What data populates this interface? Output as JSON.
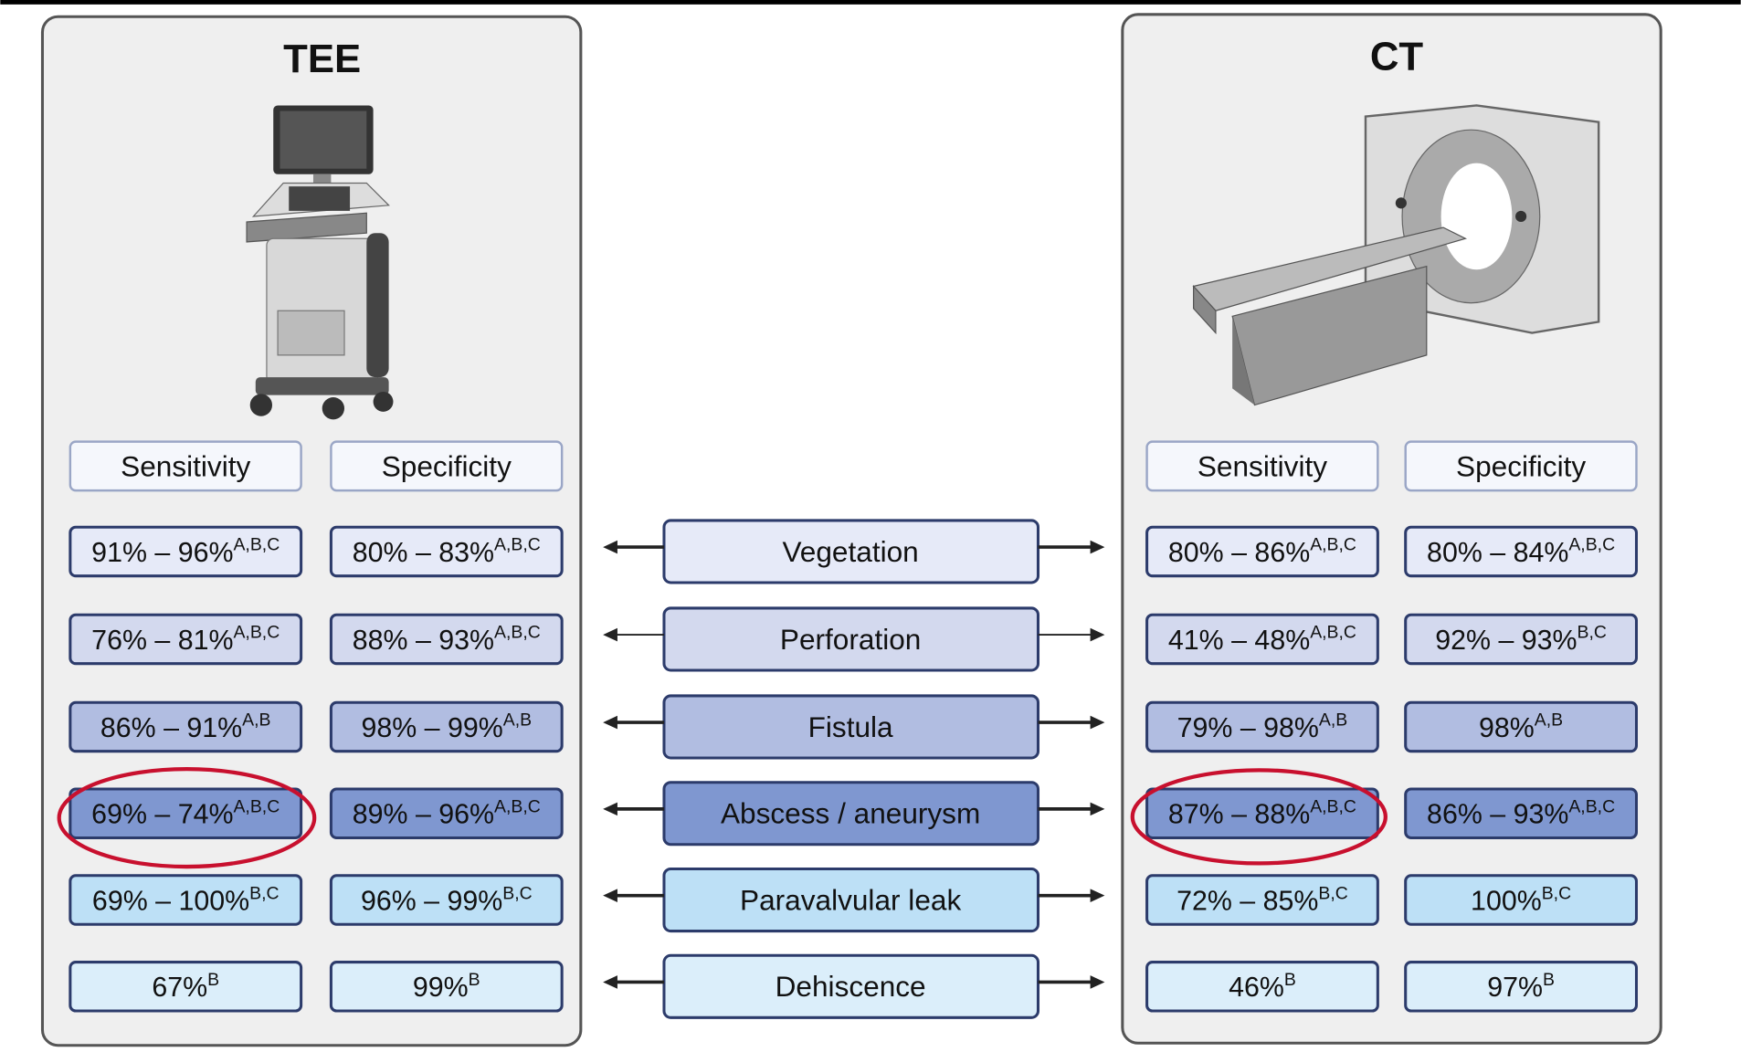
{
  "tee": {
    "title": "TEE",
    "headers": [
      "Sensitivity",
      "Specificity"
    ],
    "rows": [
      [
        {
          "value": "91% – 96%",
          "sup": "A,B,C"
        },
        {
          "value": "80% – 83%",
          "sup": "A,B,C"
        }
      ],
      [
        {
          "value": "76% – 81%",
          "sup": "A,B,C"
        },
        {
          "value": "88% – 93%",
          "sup": "A,B,C"
        }
      ],
      [
        {
          "value": "86% – 91%",
          "sup": "A,B"
        },
        {
          "value": "98% – 99%",
          "sup": "A,B"
        }
      ],
      [
        {
          "value": "69% – 74%",
          "sup": "A,B,C"
        },
        {
          "value": "89% – 96%",
          "sup": "A,B,C"
        }
      ],
      [
        {
          "value": "69% – 100%",
          "sup": "B,C"
        },
        {
          "value": "96% – 99%",
          "sup": "B,C"
        }
      ],
      [
        {
          "value": "67%",
          "sup": "B"
        },
        {
          "value": "99%",
          "sup": "B"
        }
      ]
    ]
  },
  "ct": {
    "title": "CT",
    "headers": [
      "Sensitivity",
      "Specificity"
    ],
    "rows": [
      [
        {
          "value": "80% – 86%",
          "sup": "A,B,C"
        },
        {
          "value": "80% – 84%",
          "sup": "A,B,C"
        }
      ],
      [
        {
          "value": "41% – 48%",
          "sup": "A,B,C"
        },
        {
          "value": "92% – 93%",
          "sup": "B,C"
        }
      ],
      [
        {
          "value": "79% – 98%",
          "sup": "A,B"
        },
        {
          "value": "98%",
          "sup": "A,B"
        }
      ],
      [
        {
          "value": "87% – 88%",
          "sup": "A,B,C"
        },
        {
          "value": "86% – 93%",
          "sup": "A,B,C"
        }
      ],
      [
        {
          "value": "72% – 85%",
          "sup": "B,C"
        },
        {
          "value": "100%",
          "sup": "B,C"
        }
      ],
      [
        {
          "value": "46%",
          "sup": "B"
        },
        {
          "value": "97%",
          "sup": "B"
        }
      ]
    ]
  },
  "findings": [
    "Vegetation",
    "Perforation",
    "Fistula",
    "Abscess / aneurysm",
    "Paravalvular leak",
    "Dehiscence"
  ]
}
